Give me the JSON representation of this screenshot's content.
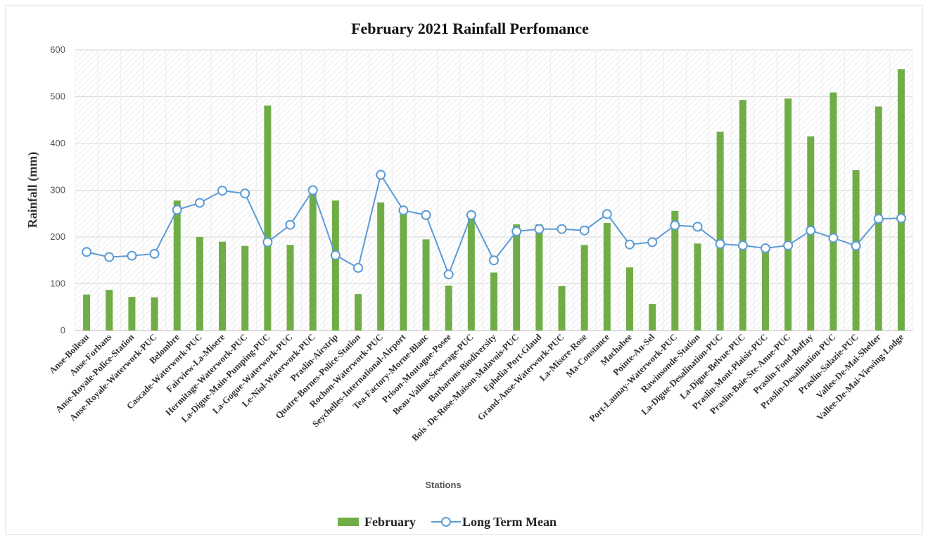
{
  "chart_data": {
    "type": "bar_line",
    "title": "February 2021 Rainfall Perfomance",
    "x_label": "Stations",
    "y_label": "Rainfall (mm)",
    "categories": [
      "Anse-Boileau",
      "Anse-Forbans",
      "Anse-Royale-Police-Station",
      "Anse-Royale-Waterwork-PUC",
      "Belombre",
      "Cascade-Waterwork-PUC",
      "Fairview-La-Misere",
      "Hermitage-Waterwork-PUC",
      "La-Digue-Main-Pumping-PUC",
      "La-Gogue-Waterwork-PUC",
      "Le-Niol-Waterwork-PUC",
      "Praslin-Airstrip",
      "Quatre-Bornes-Police-Station",
      "Rochon-Waterwork-PUC",
      "Seychelles-International-Airport",
      "Tea-Factory-Morne-Blanc",
      "Prison-Montagne-Posee",
      "Beau-Vallon-Sewerage-PUC",
      "Barbarons-Biodiversity",
      "Bois -De-Rose-Maison-Malavois-PUC",
      "Ephelia-Port-Glaud",
      "Grand-Anse-Waterwork-PUC",
      "La-Misere-Rose",
      "Ma-Constance",
      "Machabee",
      "Pointe-Au-Sel",
      "Port-Launay-Waterwork-PUC",
      "Rawinsonde-Station",
      "La-Digue-Desalination-PUC",
      "La-Digue-Belvue-PUC",
      "Praslin-Mont-Plaisir-PUC",
      "Praslin-Baie-Ste-Anne-PUC",
      "Praslin-Fond-Boffay",
      "Praslin-Desalination-PUC",
      "Praslin-Salazie-PUC",
      "Vallee-De-Mai-Shelter",
      "Vallee-De-Mai-Viewing-Lodge"
    ],
    "series": [
      {
        "name": "February",
        "type": "bar",
        "color": "#70ad47",
        "values": [
          77,
          87,
          72,
          71,
          278,
          200,
          190,
          181,
          481,
          183,
          293,
          278,
          78,
          274,
          255,
          195,
          96,
          240,
          124,
          227,
          227,
          95,
          183,
          230,
          135,
          57,
          256,
          186,
          425,
          493,
          175,
          496,
          415,
          509,
          343,
          479,
          559
        ]
      },
      {
        "name": "Long Term Mean",
        "type": "line",
        "color": "#5b9bd5",
        "values": [
          168,
          157,
          160,
          164,
          258,
          273,
          299,
          293,
          189,
          226,
          300,
          161,
          134,
          333,
          257,
          247,
          120,
          247,
          150,
          212,
          217,
          217,
          214,
          249,
          184,
          189,
          225,
          222,
          185,
          182,
          176,
          182,
          214,
          198,
          181,
          239,
          240
        ]
      }
    ],
    "ylim": [
      0,
      600
    ],
    "yticks": [
      0,
      100,
      200,
      300,
      400,
      500,
      600
    ],
    "grid": true,
    "legend": "bottom"
  }
}
